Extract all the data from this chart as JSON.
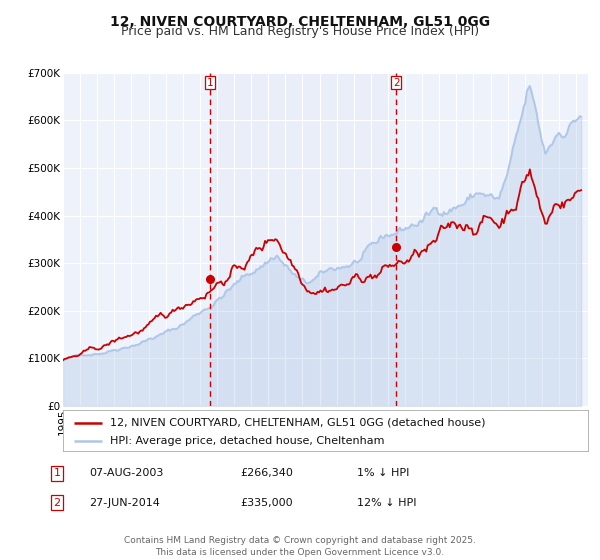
{
  "title": "12, NIVEN COURTYARD, CHELTENHAM, GL51 0GG",
  "subtitle": "Price paid vs. HM Land Registry's House Price Index (HPI)",
  "ylim": [
    0,
    700000
  ],
  "yticks": [
    0,
    100000,
    200000,
    300000,
    400000,
    500000,
    600000,
    700000
  ],
  "ytick_labels": [
    "£0",
    "£100K",
    "£200K",
    "£300K",
    "£400K",
    "£500K",
    "£600K",
    "£700K"
  ],
  "xlim_start": 1995.0,
  "xlim_end": 2025.7,
  "hpi_color": "#aec6e8",
  "price_color": "#cc0000",
  "marker_color": "#cc0000",
  "vline_color": "#cc0000",
  "bg_color": "#ffffff",
  "plot_bg_color": "#eef2fa",
  "grid_color": "#ffffff",
  "legend_label_price": "12, NIVEN COURTYARD, CHELTENHAM, GL51 0GG (detached house)",
  "legend_label_hpi": "HPI: Average price, detached house, Cheltenham",
  "sale1_date": 2003.6,
  "sale1_price": 266340,
  "sale1_label": "1",
  "sale2_date": 2014.49,
  "sale2_price": 335000,
  "sale2_label": "2",
  "annotation1_date": "07-AUG-2003",
  "annotation1_price": "£266,340",
  "annotation1_hpi": "1% ↓ HPI",
  "annotation2_date": "27-JUN-2014",
  "annotation2_price": "£335,000",
  "annotation2_hpi": "12% ↓ HPI",
  "footer": "Contains HM Land Registry data © Crown copyright and database right 2025.\nThis data is licensed under the Open Government Licence v3.0.",
  "title_fontsize": 10,
  "subtitle_fontsize": 9,
  "tick_fontsize": 7.5,
  "legend_fontsize": 8,
  "annotation_fontsize": 8,
  "footer_fontsize": 6.5
}
